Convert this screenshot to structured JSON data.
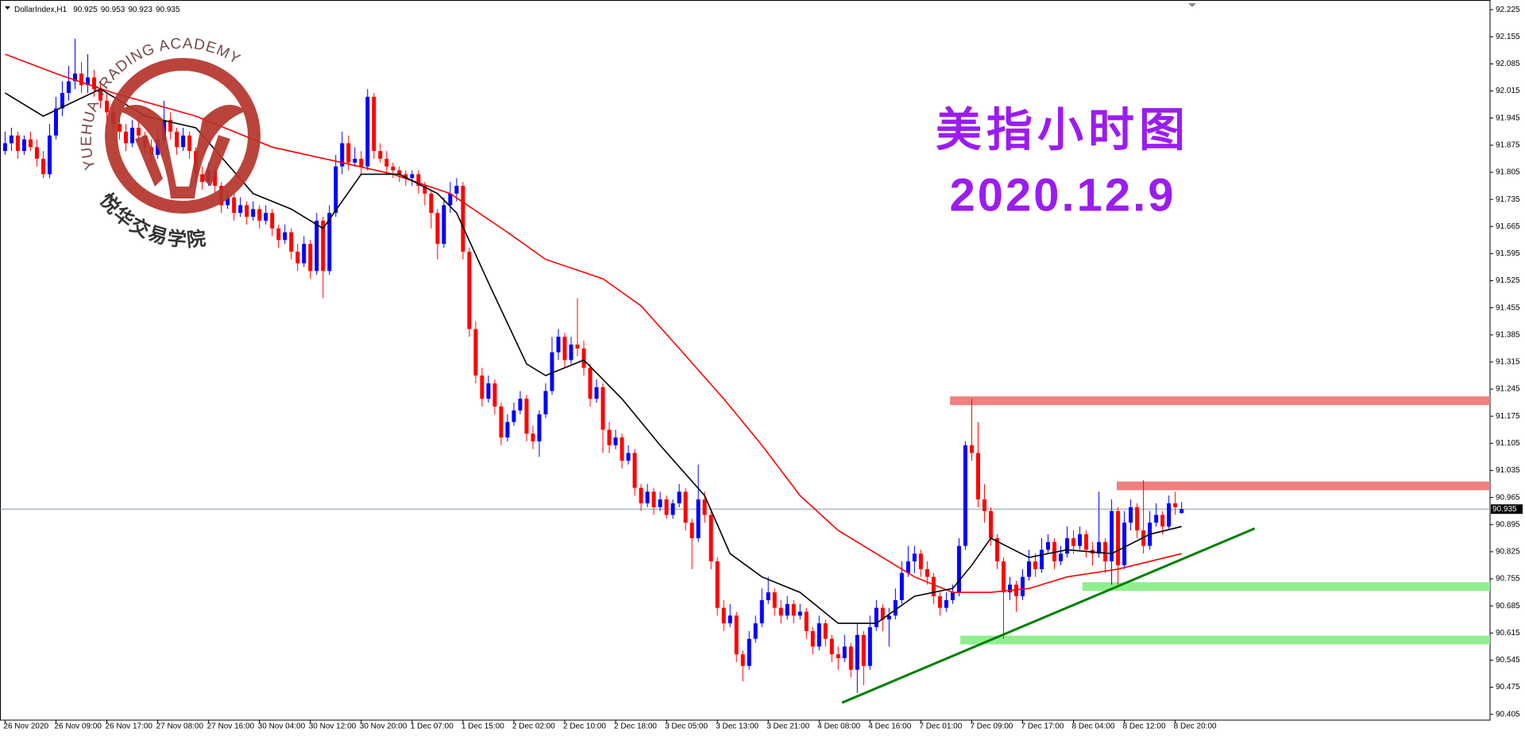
{
  "chart_data": {
    "type": "candlestick",
    "symbol": "DollarIndex,H1",
    "title": "美指小时图",
    "subtitle": "2020.12.9",
    "watermark": {
      "arc_text": "YUEHUA TRADING ACADEMY",
      "name_text": "悦华交易学院",
      "color": "#b5352b"
    },
    "up_color": "#0000ff",
    "down_color": "#ff0000",
    "flat_color": "#00a000",
    "ylim": [
      90.39,
      92.25
    ],
    "yticks": [
      90.405,
      90.475,
      90.545,
      90.615,
      90.685,
      90.755,
      90.825,
      90.895,
      90.965,
      91.035,
      91.105,
      91.175,
      91.245,
      91.315,
      91.385,
      91.455,
      91.525,
      91.595,
      91.665,
      91.735,
      91.805,
      91.875,
      91.945,
      92.015,
      92.085,
      92.155,
      92.225
    ],
    "xlim": [
      -0.8,
      233.5
    ],
    "xticks": [
      {
        "value": 0,
        "label": "26 Nov 2020"
      },
      {
        "value": 8,
        "label": "26 Nov 09:00"
      },
      {
        "value": 16,
        "label": "26 Nov 17:00"
      },
      {
        "value": 24,
        "label": "27 Nov 08:00"
      },
      {
        "value": 32,
        "label": "27 Nov 16:00"
      },
      {
        "value": 40,
        "label": "30 Nov 04:00"
      },
      {
        "value": 48,
        "label": "30 Nov 12:00"
      },
      {
        "value": 56,
        "label": "30 Nov 20:00"
      },
      {
        "value": 64,
        "label": "1 Dec 07:00"
      },
      {
        "value": 72,
        "label": "1 Dec 15:00"
      },
      {
        "value": 80,
        "label": "2 Dec 02:00"
      },
      {
        "value": 88,
        "label": "2 Dec 10:00"
      },
      {
        "value": 96,
        "label": "2 Dec 18:00"
      },
      {
        "value": 104,
        "label": "3 Dec 05:00"
      },
      {
        "value": 112,
        "label": "3 Dec 13:00"
      },
      {
        "value": 120,
        "label": "3 Dec 21:00"
      },
      {
        "value": 128,
        "label": "4 Dec 08:00"
      },
      {
        "value": 136,
        "label": "4 Dec 16:00"
      },
      {
        "value": 144,
        "label": "7 Dec 01:00"
      },
      {
        "value": 152,
        "label": "7 Dec 09:00"
      },
      {
        "value": 160,
        "label": "7 Dec 17:00"
      },
      {
        "value": 168,
        "label": "8 Dec 04:00"
      },
      {
        "value": 176,
        "label": "8 Dec 12:00"
      },
      {
        "value": 184,
        "label": "8 Dec 20:00"
      }
    ],
    "ohlc": [
      [
        91.86,
        91.91,
        91.85,
        91.88
      ],
      [
        91.88,
        91.92,
        91.86,
        91.9
      ],
      [
        91.9,
        91.91,
        91.84,
        91.86
      ],
      [
        91.86,
        91.9,
        91.85,
        91.89
      ],
      [
        91.89,
        91.91,
        91.86,
        91.87
      ],
      [
        91.87,
        91.89,
        91.82,
        91.84
      ],
      [
        91.84,
        91.86,
        91.79,
        91.8
      ],
      [
        91.8,
        91.93,
        91.79,
        91.9
      ],
      [
        91.9,
        92,
        91.89,
        91.97
      ],
      [
        91.97,
        92.04,
        91.95,
        92.01
      ],
      [
        92.01,
        92.08,
        91.99,
        92.04
      ],
      [
        92.04,
        92.15,
        92.02,
        92.06
      ],
      [
        92.06,
        92.09,
        92.01,
        92.03
      ],
      [
        92.03,
        92.11,
        92.01,
        92.05
      ],
      [
        92.05,
        92.07,
        92,
        92.02
      ],
      [
        92.02,
        92.04,
        91.97,
        91.99
      ],
      [
        91.99,
        92.01,
        91.94,
        91.96
      ],
      [
        91.96,
        91.98,
        91.91,
        91.93
      ],
      [
        91.93,
        91.95,
        91.89,
        91.91
      ],
      [
        91.91,
        91.93,
        91.86,
        91.88
      ],
      [
        91.88,
        91.94,
        91.87,
        91.92
      ],
      [
        91.92,
        91.95,
        91.88,
        91.9
      ],
      [
        91.9,
        91.91,
        91.85,
        91.87
      ],
      [
        91.87,
        91.89,
        91.83,
        91.85
      ],
      [
        91.85,
        91.91,
        91.84,
        91.89
      ],
      [
        91.89,
        91.99,
        91.88,
        91.94
      ],
      [
        91.94,
        91.96,
        91.89,
        91.91
      ],
      [
        91.91,
        91.92,
        91.85,
        91.87
      ],
      [
        91.87,
        91.92,
        91.86,
        91.9
      ],
      [
        91.9,
        91.91,
        91.84,
        91.86
      ],
      [
        91.86,
        91.87,
        91.78,
        91.8
      ],
      [
        91.8,
        91.82,
        91.76,
        91.78
      ],
      [
        91.78,
        91.83,
        91.77,
        91.81
      ],
      [
        91.81,
        91.82,
        91.75,
        91.77
      ],
      [
        91.77,
        91.78,
        91.7,
        91.72
      ],
      [
        91.72,
        91.76,
        91.71,
        91.74
      ],
      [
        91.74,
        91.75,
        91.68,
        91.7
      ],
      [
        91.7,
        91.74,
        91.69,
        91.72
      ],
      [
        91.72,
        91.73,
        91.67,
        91.69
      ],
      [
        91.69,
        91.73,
        91.68,
        91.71
      ],
      [
        91.71,
        91.72,
        91.66,
        91.68
      ],
      [
        91.68,
        91.72,
        91.67,
        91.7
      ],
      [
        91.7,
        91.71,
        91.64,
        91.66
      ],
      [
        91.66,
        91.67,
        91.61,
        91.63
      ],
      [
        91.63,
        91.67,
        91.62,
        91.65
      ],
      [
        91.65,
        91.66,
        91.58,
        91.6
      ],
      [
        91.6,
        91.62,
        91.55,
        91.57
      ],
      [
        91.57,
        91.64,
        91.56,
        91.62
      ],
      [
        91.62,
        91.63,
        91.53,
        91.55
      ],
      [
        91.55,
        91.7,
        91.54,
        91.68
      ],
      [
        91.68,
        91.69,
        91.48,
        91.55
      ],
      [
        91.55,
        91.72,
        91.54,
        91.7
      ],
      [
        91.7,
        91.85,
        91.69,
        91.82
      ],
      [
        91.82,
        91.91,
        91.8,
        91.88
      ],
      [
        91.88,
        91.9,
        91.81,
        91.83
      ],
      [
        91.83,
        91.87,
        91.82,
        91.84
      ],
      [
        91.84,
        91.86,
        91.8,
        91.82
      ],
      [
        91.82,
        92.02,
        91.81,
        92
      ],
      [
        92,
        92.01,
        91.84,
        91.86
      ],
      [
        91.86,
        91.88,
        91.83,
        91.84
      ],
      [
        91.84,
        91.86,
        91.8,
        91.82
      ],
      [
        91.82,
        91.83,
        91.79,
        91.81
      ],
      [
        91.81,
        91.82,
        91.78,
        91.8
      ],
      [
        91.8,
        91.81,
        91.77,
        91.79
      ],
      [
        91.79,
        91.81,
        91.77,
        91.8
      ],
      [
        91.8,
        91.81,
        91.75,
        91.77
      ],
      [
        91.77,
        91.78,
        91.72,
        91.75
      ],
      [
        91.75,
        91.76,
        91.66,
        91.7
      ],
      [
        91.7,
        91.71,
        91.58,
        91.62
      ],
      [
        91.62,
        91.74,
        91.61,
        91.72
      ],
      [
        91.72,
        91.78,
        91.7,
        91.75
      ],
      [
        91.75,
        91.79,
        91.73,
        91.77
      ],
      [
        91.77,
        91.78,
        91.58,
        91.6
      ],
      [
        91.6,
        91.61,
        91.38,
        91.4
      ],
      [
        91.4,
        91.42,
        91.26,
        91.28
      ],
      [
        91.28,
        91.3,
        91.2,
        91.22
      ],
      [
        91.22,
        91.28,
        91.21,
        91.26
      ],
      [
        91.26,
        91.27,
        91.18,
        91.2
      ],
      [
        91.2,
        91.21,
        91.1,
        91.12
      ],
      [
        91.12,
        91.18,
        91.11,
        91.16
      ],
      [
        91.16,
        91.21,
        91.15,
        91.19
      ],
      [
        91.19,
        91.24,
        91.18,
        91.22
      ],
      [
        91.22,
        91.23,
        91.11,
        91.13
      ],
      [
        91.13,
        91.15,
        91.09,
        91.11
      ],
      [
        91.11,
        91.19,
        91.07,
        91.18
      ],
      [
        91.18,
        91.26,
        91.17,
        91.24
      ],
      [
        91.24,
        91.38,
        91.23,
        91.34
      ],
      [
        91.34,
        91.4,
        91.32,
        91.38
      ],
      [
        91.38,
        91.39,
        91.3,
        91.32
      ],
      [
        91.32,
        91.38,
        91.31,
        91.36
      ],
      [
        91.36,
        91.48,
        91.33,
        91.35
      ],
      [
        91.35,
        91.37,
        91.28,
        91.3
      ],
      [
        91.3,
        91.31,
        91.2,
        91.22
      ],
      [
        91.22,
        91.27,
        91.21,
        91.25
      ],
      [
        91.25,
        91.26,
        91.08,
        91.14
      ],
      [
        91.14,
        91.16,
        91.08,
        91.1
      ],
      [
        91.1,
        91.14,
        91.09,
        91.12
      ],
      [
        91.12,
        91.13,
        91.04,
        91.06
      ],
      [
        91.06,
        91.1,
        91.05,
        91.08
      ],
      [
        91.08,
        91.09,
        90.97,
        90.99
      ],
      [
        90.99,
        91,
        90.93,
        90.95
      ],
      [
        90.95,
        91,
        90.94,
        90.98
      ],
      [
        90.98,
        90.99,
        90.92,
        90.94
      ],
      [
        90.94,
        90.98,
        90.93,
        90.96
      ],
      [
        90.96,
        90.97,
        90.91,
        90.92
      ],
      [
        90.92,
        90.96,
        90.91,
        90.95
      ],
      [
        90.95,
        91,
        90.94,
        90.98
      ],
      [
        90.98,
        90.99,
        90.88,
        90.9
      ],
      [
        90.9,
        90.91,
        90.78,
        90.86
      ],
      [
        90.86,
        91.05,
        90.85,
        90.96
      ],
      [
        90.96,
        90.98,
        90.9,
        90.92
      ],
      [
        90.92,
        90.93,
        90.78,
        90.8
      ],
      [
        90.8,
        90.81,
        90.66,
        90.68
      ],
      [
        90.68,
        90.7,
        90.62,
        90.64
      ],
      [
        90.64,
        90.69,
        90.63,
        90.66
      ],
      [
        90.66,
        90.67,
        90.54,
        90.56
      ],
      [
        90.56,
        90.57,
        90.49,
        90.53
      ],
      [
        90.53,
        90.62,
        90.52,
        90.6
      ],
      [
        90.6,
        90.66,
        90.59,
        90.64
      ],
      [
        90.64,
        90.73,
        90.63,
        90.7
      ],
      [
        90.7,
        90.76,
        90.69,
        90.72
      ],
      [
        90.72,
        90.73,
        90.66,
        90.68
      ],
      [
        90.68,
        90.7,
        90.64,
        90.66
      ],
      [
        90.66,
        90.71,
        90.65,
        90.69
      ],
      [
        90.69,
        90.7,
        90.64,
        90.66
      ],
      [
        90.66,
        90.69,
        90.65,
        90.67
      ],
      [
        90.67,
        90.68,
        90.6,
        90.62
      ],
      [
        90.62,
        90.63,
        90.56,
        90.58
      ],
      [
        90.58,
        90.66,
        90.57,
        90.64
      ],
      [
        90.64,
        90.65,
        90.58,
        90.6
      ],
      [
        90.6,
        90.61,
        90.54,
        90.56
      ],
      [
        90.56,
        90.58,
        90.52,
        90.55
      ],
      [
        90.55,
        90.61,
        90.54,
        90.58
      ],
      [
        90.58,
        90.59,
        90.5,
        90.52
      ],
      [
        90.52,
        90.64,
        90.46,
        90.61
      ],
      [
        90.61,
        90.62,
        90.48,
        90.53
      ],
      [
        90.53,
        90.66,
        90.52,
        90.63
      ],
      [
        90.63,
        90.7,
        90.62,
        90.68
      ],
      [
        90.68,
        90.69,
        90.62,
        90.65
      ],
      [
        90.65,
        90.68,
        90.58,
        90.66
      ],
      [
        90.66,
        90.73,
        90.65,
        90.7
      ],
      [
        90.7,
        90.8,
        90.69,
        90.77
      ],
      [
        90.77,
        90.84,
        90.76,
        90.8
      ],
      [
        90.8,
        90.84,
        90.77,
        90.82
      ],
      [
        90.82,
        90.83,
        90.76,
        90.78
      ],
      [
        90.78,
        90.8,
        90.74,
        90.76
      ],
      [
        90.76,
        90.77,
        90.69,
        90.71
      ],
      [
        90.71,
        90.72,
        90.66,
        90.68
      ],
      [
        90.68,
        90.72,
        90.67,
        90.7
      ],
      [
        90.7,
        90.74,
        90.69,
        90.72
      ],
      [
        90.72,
        90.86,
        90.71,
        90.84
      ],
      [
        90.84,
        91.11,
        90.83,
        91.1
      ],
      [
        91.1,
        91.22,
        91.06,
        91.08
      ],
      [
        91.08,
        91.16,
        90.94,
        90.96
      ],
      [
        90.96,
        91,
        90.9,
        90.93
      ],
      [
        90.93,
        90.94,
        90.84,
        90.86
      ],
      [
        90.86,
        90.87,
        90.78,
        90.8
      ],
      [
        90.8,
        90.81,
        90.6,
        90.72
      ],
      [
        90.72,
        90.76,
        90.7,
        90.74
      ],
      [
        90.74,
        90.75,
        90.67,
        90.71
      ],
      [
        90.71,
        90.78,
        90.7,
        90.76
      ],
      [
        90.76,
        90.83,
        90.75,
        90.8
      ],
      [
        90.8,
        90.82,
        90.76,
        90.78
      ],
      [
        90.78,
        90.86,
        90.77,
        90.83
      ],
      [
        90.83,
        90.87,
        90.82,
        90.85
      ],
      [
        90.85,
        90.86,
        90.78,
        90.8
      ],
      [
        90.8,
        90.84,
        90.79,
        90.82
      ],
      [
        90.82,
        90.89,
        90.81,
        90.86
      ],
      [
        90.86,
        90.88,
        90.82,
        90.84
      ],
      [
        90.84,
        90.89,
        90.83,
        90.87
      ],
      [
        90.87,
        90.88,
        90.81,
        90.83
      ],
      [
        90.83,
        90.85,
        90.79,
        90.82
      ],
      [
        90.82,
        90.98,
        90.81,
        90.85
      ],
      [
        90.85,
        90.86,
        90.77,
        90.8
      ],
      [
        90.8,
        90.96,
        90.74,
        90.93
      ],
      [
        90.93,
        90.94,
        90.74,
        90.79
      ],
      [
        90.79,
        90.93,
        90.78,
        90.9
      ],
      [
        90.9,
        90.96,
        90.88,
        90.94
      ],
      [
        90.94,
        90.95,
        90.86,
        90.88
      ],
      [
        90.88,
        91.01,
        90.82,
        90.84
      ],
      [
        90.84,
        90.93,
        90.83,
        90.9
      ],
      [
        90.9,
        90.95,
        90.89,
        90.92
      ],
      [
        90.92,
        90.93,
        90.87,
        90.89
      ],
      [
        90.89,
        90.97,
        90.88,
        90.95
      ],
      [
        90.95,
        90.98,
        90.92,
        90.94
      ],
      [
        90.925,
        90.953,
        90.923,
        90.935
      ]
    ],
    "lines": [
      {
        "color": "#ff0000",
        "x": [
          0,
          8,
          17,
          30,
          42,
          53,
          61,
          70,
          79,
          85,
          94,
          100,
          106,
          113,
          119,
          125,
          131,
          137,
          143,
          149,
          155,
          161,
          167,
          175,
          185
        ],
        "values": [
          92.11,
          92.06,
          92.01,
          91.95,
          91.87,
          91.83,
          91.8,
          91.75,
          91.65,
          91.58,
          91.53,
          91.46,
          91.35,
          91.22,
          91.1,
          90.97,
          90.88,
          90.82,
          90.76,
          90.72,
          90.72,
          90.73,
          90.76,
          90.78,
          90.82
        ]
      },
      {
        "color": "#000000",
        "x": [
          0,
          6,
          15,
          22,
          30,
          39,
          45,
          50,
          56,
          62,
          68,
          71,
          76,
          82,
          85,
          91,
          97,
          103,
          110,
          114,
          119,
          125,
          131,
          137,
          143,
          149,
          152,
          155,
          161,
          167,
          174,
          180,
          185
        ],
        "values": [
          92.01,
          91.95,
          92.02,
          91.95,
          91.92,
          91.75,
          91.71,
          91.66,
          91.8,
          91.8,
          91.75,
          91.7,
          91.52,
          91.31,
          91.28,
          91.32,
          91.22,
          91.1,
          90.97,
          90.82,
          90.76,
          90.72,
          90.64,
          90.64,
          90.71,
          90.73,
          90.79,
          90.86,
          90.81,
          90.83,
          90.82,
          90.87,
          90.89
        ]
      }
    ],
    "zones": [
      {
        "color": "#f08080",
        "from": 148.6,
        "value": 91.215
      },
      {
        "color": "#f08080",
        "from": 174.8,
        "value": 90.995
      },
      {
        "color": "#90ee90",
        "from": 169.4,
        "value": 90.735
      },
      {
        "color": "#90ee90",
        "from": 150.2,
        "value": 90.597
      }
    ],
    "trendline": {
      "color": "#008000",
      "x": [
        131.6,
        196.5
      ],
      "values": [
        90.435,
        90.885
      ]
    },
    "price_line_color": "#8899aa"
  }
}
